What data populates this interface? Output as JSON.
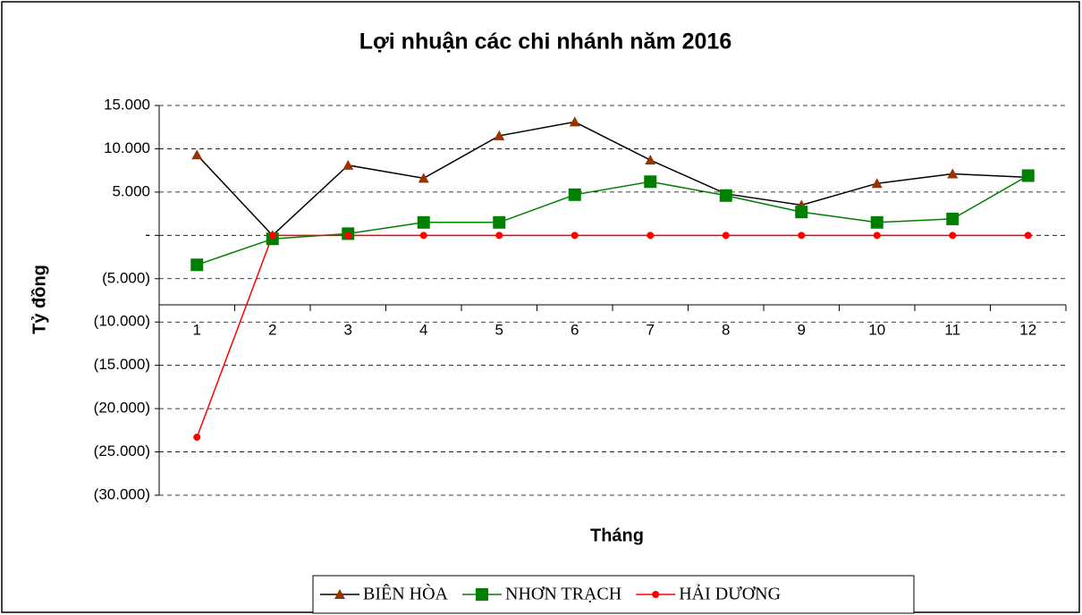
{
  "chart_data": {
    "type": "line",
    "title": "Lợi nhuận các chi nhánh năm 2016",
    "x_label": "Tháng",
    "y_label": "Tỷ đồng",
    "categories": [
      "1",
      "2",
      "3",
      "4",
      "5",
      "6",
      "7",
      "8",
      "9",
      "10",
      "11",
      "12"
    ],
    "series": [
      {
        "name": "BIÊN HÒA",
        "color": "#000000",
        "marker_color": "#993300",
        "marker": "triangle",
        "values": [
          9300,
          0,
          8100,
          6600,
          11500,
          13100,
          8700,
          4800,
          3500,
          6000,
          7100,
          6700
        ]
      },
      {
        "name": "NHƠN TRẠCH",
        "color": "#008000",
        "marker_color": "#008000",
        "marker": "square",
        "values": [
          -3400,
          -400,
          200,
          1500,
          1500,
          4700,
          6200,
          4600,
          2700,
          1500,
          1900,
          6900
        ]
      },
      {
        "name": "HẢI DƯƠNG",
        "color": "#ff0000",
        "marker_color": "#ff0000",
        "marker": "circle",
        "values": [
          -23300,
          0,
          0,
          0,
          0,
          0,
          0,
          0,
          0,
          0,
          0,
          0
        ]
      }
    ],
    "ylim": [
      -30000,
      15000
    ],
    "yticks": [
      {
        "value": 15000,
        "label": "15.000"
      },
      {
        "value": 10000,
        "label": "10.000"
      },
      {
        "value": 5000,
        "label": "5.000"
      },
      {
        "value": 0,
        "label": "-"
      },
      {
        "value": -5000,
        "label": "(5.000)"
      },
      {
        "value": -10000,
        "label": "(10.000)"
      },
      {
        "value": -15000,
        "label": "(15.000)"
      },
      {
        "value": -20000,
        "label": "(20.000)"
      },
      {
        "value": -25000,
        "label": "(25.000)"
      },
      {
        "value": -30000,
        "label": "(30.000)"
      }
    ],
    "grid": true,
    "legend": "bottom"
  }
}
